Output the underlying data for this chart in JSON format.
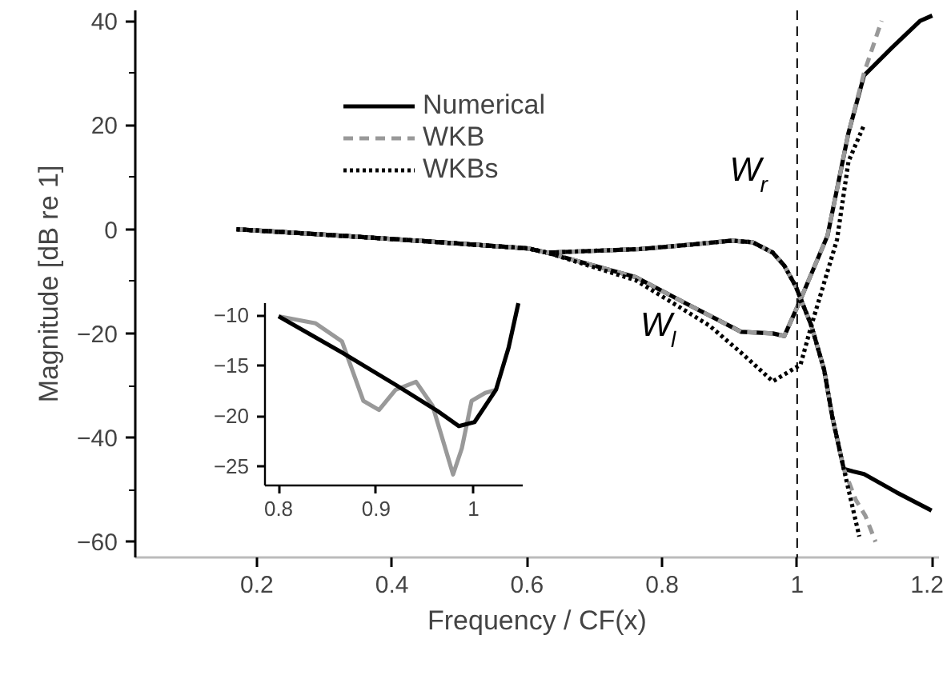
{
  "chart_data": [
    {
      "type": "line",
      "xlabel": "Frequency / CF(x)",
      "ylabel": "Magnitude [dB re 1]",
      "xlim": [
        0.02,
        1.21
      ],
      "ylim": [
        -63,
        42
      ],
      "xticks": [
        0.2,
        0.4,
        0.6,
        0.8,
        1,
        1.2
      ],
      "yticks": [
        40,
        20,
        0,
        {
          "value": -20,
          "label": "−20"
        },
        {
          "value": -40,
          "label": "−40"
        },
        {
          "value": -60,
          "label": "−60"
        }
      ],
      "grid": false,
      "legend": "top left",
      "marker": "none",
      "ref_lines": [
        {
          "axis": "x",
          "value": 1,
          "label": null,
          "color": "#000000",
          "line_style": "dashed"
        }
      ],
      "annotations": [
        "W$_{r}$",
        "W$_{l}$"
      ],
      "series": [
        {
          "name": "Numerical",
          "color": "#000000",
          "line_style": "solid",
          "x": [
            0.17,
            0.295,
            0.437,
            0.602,
            0.63,
            0.768,
            0.839,
            0.903,
            0.934,
            0.964,
            0.981,
            0.998,
            1.021,
            1.04,
            1.052,
            1.069,
            1.083,
            1.099,
            1.147,
            1.199
          ],
          "values": [
            0,
            -1,
            -2.2,
            -3.7,
            -4.5,
            -3.8,
            -3,
            -2.2,
            -2.5,
            -4.5,
            -7,
            -11,
            -18.5,
            -27,
            -36,
            -46,
            -46.5,
            -47,
            -50.5,
            -54
          ]
        },
        {
          "color": "#000000",
          "line_style": "solid",
          "x": [
            0.17,
            0.295,
            0.437,
            0.602,
            0.63,
            0.761,
            0.839,
            0.917,
            0.964,
            0.981,
            1.005,
            1.045,
            1.076,
            1.099,
            1.14,
            1.182,
            1.2
          ],
          "values": [
            0,
            -1,
            -2.2,
            -3.7,
            -4.5,
            -9.2,
            -14.5,
            -19.7,
            -20,
            -20.5,
            -13.5,
            -1.2,
            18.5,
            29.5,
            34.8,
            40,
            41
          ]
        },
        {
          "name": "WKB",
          "color": "#999999",
          "line_style": "dashed",
          "x": [
            0.17,
            0.295,
            0.437,
            0.602,
            0.63,
            0.768,
            0.839,
            0.903,
            0.934,
            0.964,
            0.981,
            0.998,
            1.021,
            1.04,
            1.052,
            1.069,
            1.087,
            1.101,
            1.116
          ],
          "values": [
            0,
            -1,
            -2.2,
            -3.7,
            -4.5,
            -3.8,
            -3,
            -2.2,
            -2.5,
            -4.5,
            -7,
            -11,
            -18.5,
            -27,
            -36,
            -46,
            -52,
            -55,
            -60
          ]
        },
        {
          "color": "#999999",
          "line_style": "dashed",
          "x": [
            0.17,
            0.295,
            0.437,
            0.602,
            0.63,
            0.761,
            0.839,
            0.917,
            0.964,
            0.981,
            1.005,
            1.045,
            1.076,
            1.099,
            1.125
          ],
          "values": [
            0,
            -1,
            -2.2,
            -3.7,
            -4.5,
            -9.2,
            -14.5,
            -19.7,
            -20,
            -20.5,
            -13.5,
            -1.2,
            18.5,
            30,
            40
          ]
        },
        {
          "name": "WKBs",
          "color": "#000000",
          "line_style": "dotted",
          "x": [
            0.17,
            0.295,
            0.437,
            0.602,
            0.63,
            0.768,
            0.839,
            0.903,
            0.934,
            0.964,
            0.981,
            0.998,
            1.021,
            1.04,
            1.052,
            1.069,
            1.092
          ],
          "values": [
            0,
            -1,
            -2.2,
            -3.7,
            -4.5,
            -3.8,
            -3,
            -2.2,
            -2.5,
            -4.5,
            -7,
            -11,
            -18.5,
            -27,
            -36,
            -46,
            -59
          ]
        },
        {
          "color": "#000000",
          "line_style": "dotted",
          "x": [
            0.17,
            0.295,
            0.437,
            0.602,
            0.63,
            0.761,
            0.839,
            0.87,
            0.917,
            0.964,
            1.005,
            1.021,
            1.059,
            1.076,
            1.099
          ],
          "values": [
            0,
            -1,
            -2.2,
            -3.7,
            -4.5,
            -9.8,
            -16,
            -18.5,
            -23.7,
            -29.2,
            -26,
            -18.5,
            -2,
            13,
            20
          ]
        }
      ]
    },
    {
      "type": "line",
      "xlim": [
        0.786,
        1.05
      ],
      "ylim": [
        -26.9,
        -8.8
      ],
      "xticks": [
        0.8,
        0.9,
        1
      ],
      "yticks": [
        {
          "value": -10,
          "label": "−10"
        },
        {
          "value": -15,
          "label": "−15"
        },
        {
          "value": -20,
          "label": "−20"
        },
        {
          "value": -25,
          "label": "−25"
        }
      ],
      "marker": "none",
      "series": [
        {
          "color": "#999999",
          "x": [
            0.8,
            0.838,
            0.865,
            0.887,
            0.903,
            0.92,
            0.941,
            0.958,
            0.971,
            0.979,
            0.988,
            0.998,
            1.012,
            1.023
          ],
          "values": [
            -10.1,
            -10.8,
            -12.6,
            -18.5,
            -19.4,
            -17.4,
            -16.6,
            -19,
            -23.2,
            -25.8,
            -23.2,
            -18.5,
            -17.7,
            -17.4
          ]
        },
        {
          "color": "#000000",
          "x": [
            0.8,
            0.865,
            0.92,
            0.963,
            0.985,
            1.001,
            1.023,
            1.036,
            1.046
          ],
          "values": [
            -10.1,
            -13.7,
            -16.9,
            -19.5,
            -21,
            -20.6,
            -17.4,
            -13.2,
            -8.8
          ]
        }
      ]
    }
  ]
}
